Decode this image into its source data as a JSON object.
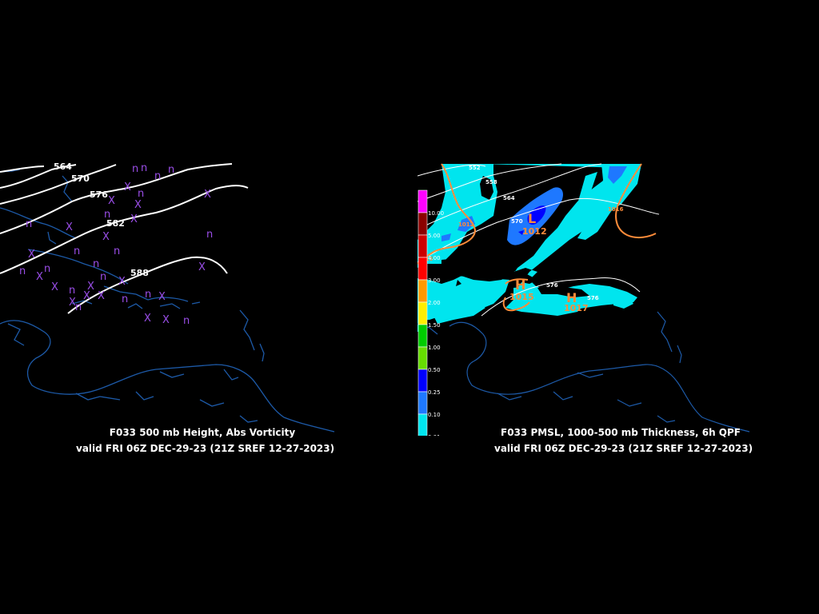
{
  "left_panel": {
    "caption_line1": "F033 500 mb Height, Abs Vorticity",
    "caption_line2": "valid FRI 06Z DEC-29-23 (21Z SREF 12-27-2023)",
    "contour_labels": [
      "564",
      "570",
      "576",
      "582",
      "588"
    ],
    "colors": {
      "contour": "#ffffff",
      "vorticity_markers": "#9a4ee8",
      "coastline": "#1d5aa8"
    }
  },
  "right_panel": {
    "caption_line1": "F033 PMSL, 1000-500 mb Thickness, 6h QPF",
    "caption_line2": "valid FRI 06Z DEC-29-23 (21Z SREF 12-27-2023)",
    "thickness_labels": [
      "552",
      "558",
      "564",
      "570",
      "576",
      "576"
    ],
    "pressure_labels": [
      "1012",
      "1016",
      "1016",
      "1015",
      "1017"
    ],
    "pressure_centers": [
      {
        "letter": "L",
        "value": "1012"
      },
      {
        "letter": "H",
        "value": "1015"
      },
      {
        "letter": "H",
        "value": "1017"
      }
    ],
    "qpf_legend": {
      "labels": [
        "10.00",
        "5.00",
        "4.00",
        "3.00",
        "2.00",
        "1.50",
        "1.00",
        "0.50",
        "0.25",
        "0.10",
        "0.01"
      ],
      "colors": [
        "#ff00ff",
        "#8b0000",
        "#cc0000",
        "#ff0000",
        "#ff9900",
        "#ffee00",
        "#00cc00",
        "#66dd00",
        "#0000ff",
        "#1e78ff",
        "#00e5ee",
        "#000000"
      ]
    },
    "colors": {
      "qpf_light": "#00e5ee",
      "qpf_medium": "#1e78ff",
      "qpf_heavy": "#0000ff",
      "thickness": "#ffffff",
      "isobar": "#ff8c3a",
      "coastline": "#1d5aa8"
    }
  }
}
